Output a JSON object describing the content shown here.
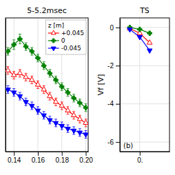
{
  "chart_data": [
    {
      "type": "line",
      "title": "5-5.2msec",
      "x": [
        0.135,
        0.14,
        0.145,
        0.15,
        0.155,
        0.16,
        0.165,
        0.17,
        0.175,
        0.18,
        0.185,
        0.19,
        0.195,
        0.2
      ],
      "xlim": [
        0.133,
        0.202
      ],
      "ylim": [
        -1.0,
        0.4
      ],
      "xticks": [
        0.14,
        0.16,
        0.18,
        {
          "value": 0.2,
          "label": "0.20"
        }
      ],
      "yticks": [],
      "grid": true,
      "tick_labels": "x",
      "legend": "upper right",
      "legend_title": "z [m]",
      "series": [
        {
          "name": "+0.045",
          "color": "#ff0000",
          "marker": "triangle-up-open",
          "values": [
            -0.15,
            -0.2,
            -0.18,
            -0.22,
            -0.25,
            -0.3,
            -0.35,
            -0.42,
            -0.48,
            -0.52,
            -0.57,
            -0.62,
            -0.66,
            -0.7
          ],
          "errors": [
            0.04,
            0.04,
            0.04,
            0.04,
            0.04,
            0.04,
            0.04,
            0.04,
            0.04,
            0.04,
            0.04,
            0.04,
            0.04,
            0.04
          ]
        },
        {
          "name": "0",
          "color": "#008000",
          "marker": "plus",
          "values": [
            0.05,
            0.12,
            0.18,
            0.1,
            0.05,
            -0.02,
            -0.1,
            -0.18,
            -0.25,
            -0.32,
            -0.38,
            -0.44,
            -0.49,
            -0.54
          ],
          "errors": [
            0.04,
            0.05,
            0.05,
            0.04,
            0.04,
            0.04,
            0.04,
            0.04,
            0.04,
            0.04,
            0.04,
            0.04,
            0.04,
            0.04
          ]
        },
        {
          "name": "-0.045",
          "color": "#0000ff",
          "marker": "triangle-down",
          "values": [
            -0.35,
            -0.38,
            -0.42,
            -0.48,
            -0.52,
            -0.57,
            -0.62,
            -0.67,
            -0.7,
            -0.73,
            -0.76,
            -0.78,
            -0.8,
            -0.82
          ],
          "errors": [
            0.04,
            0.04,
            0.04,
            0.04,
            0.04,
            0.04,
            0.04,
            0.04,
            0.04,
            0.04,
            0.04,
            0.04,
            0.04,
            0.04
          ]
        }
      ]
    },
    {
      "type": "line",
      "title": "TS",
      "ylabel": "Vf [V]",
      "annotation": "(b)",
      "x": [
        0.135,
        0.14,
        0.145
      ],
      "xlim": [
        0.13,
        0.155
      ],
      "ylim": [
        -6.5,
        0.5
      ],
      "xticks": [
        {
          "value": 0.14,
          "label": "0."
        }
      ],
      "yticks": [
        0,
        -2,
        -4,
        -6
      ],
      "grid": true,
      "series": [
        {
          "color": "#ff0000",
          "marker": "triangle-up-open",
          "values": [
            -0.05,
            -0.3,
            -0.8
          ]
        },
        {
          "color": "#008000",
          "marker": "plus",
          "values": [
            0.0,
            -0.1,
            -0.3
          ]
        },
        {
          "color": "#0000ff",
          "marker": "triangle-down",
          "values": [
            -0.1,
            -0.5,
            -1.2
          ]
        }
      ]
    }
  ]
}
